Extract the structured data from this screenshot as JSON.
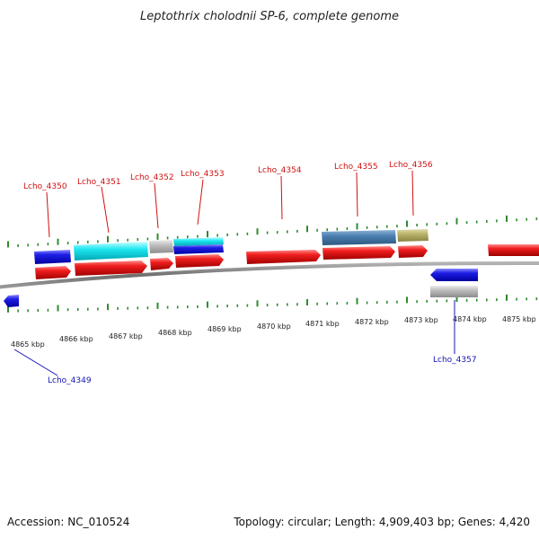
{
  "title": "Leptothrix cholodnii SP-6, complete genome",
  "footer": {
    "accession": "Accession: NC_010524",
    "summary": "Topology: circular; Length: 4,909,403 bp; Genes: 4,420"
  },
  "colors": {
    "backbone": "#7d7d7d",
    "tick": "#2f8a2f",
    "forward_label": "#d01010",
    "reverse_label": "#1414b4",
    "cds_forward": "#e01414",
    "cds_reverse": "#1e1ee0"
  },
  "ruler": {
    "unit": "kbp",
    "labels": [
      "4865 kbp",
      "4866 kbp",
      "4867 kbp",
      "4868 kbp",
      "4869 kbp",
      "4870 kbp",
      "4871 kbp",
      "4872 kbp",
      "4873 kbp",
      "4874 kbp",
      "4875 kbp"
    ]
  },
  "labels": [
    {
      "id": "4350",
      "text": "Lcho_4350",
      "strand": "forward"
    },
    {
      "id": "4351",
      "text": "Lcho_4351",
      "strand": "forward"
    },
    {
      "id": "4352",
      "text": "Lcho_4352",
      "strand": "forward"
    },
    {
      "id": "4353",
      "text": "Lcho_4353",
      "strand": "forward"
    },
    {
      "id": "4354",
      "text": "Lcho_4354",
      "strand": "forward"
    },
    {
      "id": "4355",
      "text": "Lcho_4355",
      "strand": "forward"
    },
    {
      "id": "4356",
      "text": "Lcho_4356",
      "strand": "forward"
    },
    {
      "id": "4349",
      "text": "Lcho_4349",
      "strand": "reverse"
    },
    {
      "id": "4357",
      "text": "Lcho_4357",
      "strand": "reverse"
    }
  ]
}
